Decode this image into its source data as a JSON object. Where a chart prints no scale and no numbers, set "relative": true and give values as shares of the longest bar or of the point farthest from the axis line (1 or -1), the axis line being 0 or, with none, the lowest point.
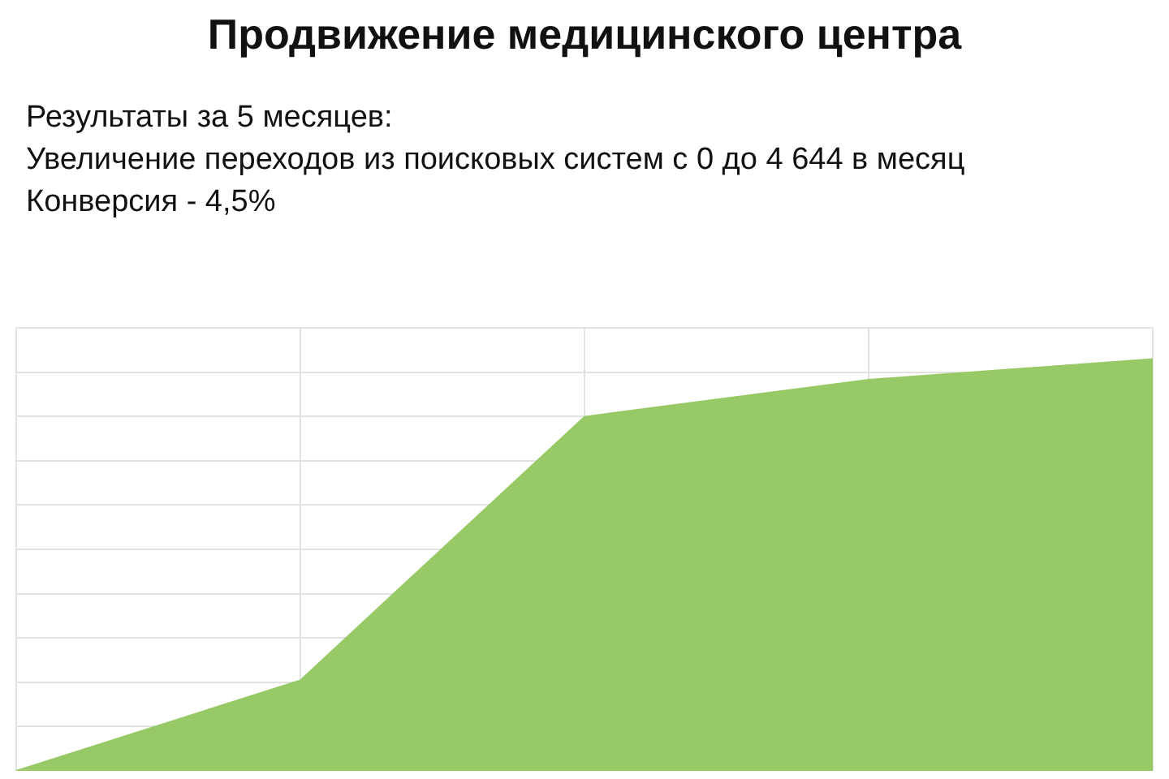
{
  "chart_data": {
    "type": "area",
    "title": "Продвижение медицинского центра",
    "annotations": [
      "Результаты за 5 месяцев:",
      "Увеличение переходов из поисковых систем с 0 до 4 644 в месяц",
      "Конверсия - 4,5%"
    ],
    "categories": [
      null,
      null,
      null,
      null,
      null
    ],
    "values": [
      0,
      0.22,
      0.86,
      0.95,
      1
    ],
    "color": "#97c966",
    "relative": true,
    "grid": true
  }
}
